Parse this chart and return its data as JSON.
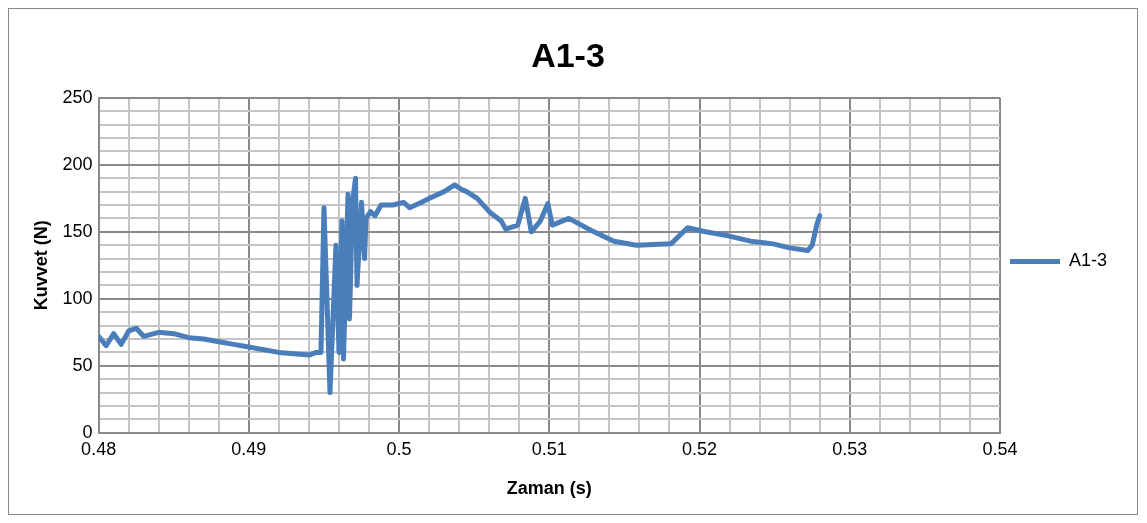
{
  "chart_data": {
    "type": "line",
    "title": "A1-3",
    "xlabel": "Zaman (s)",
    "ylabel": "Kuvvet (N)",
    "xlim": [
      0.48,
      0.54
    ],
    "xticks": [
      0.48,
      {
        "value": 0.482,
        "label": null
      },
      {
        "value": 0.484,
        "label": null
      },
      {
        "value": 0.486,
        "label": null
      },
      {
        "value": 0.488,
        "label": null
      },
      0.49,
      {
        "value": 0.492,
        "label": null
      },
      {
        "value": 0.494,
        "label": null
      },
      {
        "value": 0.496,
        "label": null
      },
      {
        "value": 0.498,
        "label": null
      },
      {
        "value": 0.5,
        "label": "0.5"
      },
      {
        "value": 0.502,
        "label": null
      },
      {
        "value": 0.504,
        "label": null
      },
      {
        "value": 0.506,
        "label": null
      },
      {
        "value": 0.508,
        "label": null
      },
      0.51,
      {
        "value": 0.512,
        "label": null
      },
      {
        "value": 0.514,
        "label": null
      },
      {
        "value": 0.516,
        "label": null
      },
      {
        "value": 0.518,
        "label": null
      },
      0.52,
      {
        "value": 0.522,
        "label": null
      },
      {
        "value": 0.524,
        "label": null
      },
      {
        "value": 0.526,
        "label": null
      },
      {
        "value": 0.528,
        "label": null
      },
      0.53,
      {
        "value": 0.532,
        "label": null
      },
      {
        "value": 0.534,
        "label": null
      },
      {
        "value": 0.536,
        "label": null
      },
      {
        "value": 0.538,
        "label": null
      },
      0.54
    ],
    "ylim": [
      0,
      250
    ],
    "yticks": [
      0,
      {
        "value": 10,
        "label": null
      },
      {
        "value": 20,
        "label": null
      },
      {
        "value": 30,
        "label": null
      },
      {
        "value": 40,
        "label": null
      },
      50,
      {
        "value": 60,
        "label": null
      },
      {
        "value": 70,
        "label": null
      },
      {
        "value": 80,
        "label": null
      },
      {
        "value": 90,
        "label": null
      },
      100,
      {
        "value": 110,
        "label": null
      },
      {
        "value": 120,
        "label": null
      },
      {
        "value": 130,
        "label": null
      },
      {
        "value": 140,
        "label": null
      },
      150,
      {
        "value": 160,
        "label": null
      },
      {
        "value": 170,
        "label": null
      },
      {
        "value": 180,
        "label": null
      },
      {
        "value": 190,
        "label": null
      },
      200,
      {
        "value": 210,
        "label": null
      },
      {
        "value": 220,
        "label": null
      },
      {
        "value": 230,
        "label": null
      },
      {
        "value": 240,
        "label": null
      },
      250
    ],
    "grid": true,
    "legend": "right",
    "marker": "none",
    "line_style": "solid",
    "series": [
      {
        "name": "A1-3",
        "color": "#4a7ebb",
        "x": [
          0.48,
          0.4805,
          0.481,
          0.4815,
          0.482,
          0.4825,
          0.483,
          0.484,
          0.485,
          0.486,
          0.487,
          0.488,
          0.489,
          0.49,
          0.491,
          0.492,
          0.493,
          0.494,
          0.4945,
          0.4948,
          0.495,
          0.4954,
          0.4958,
          0.496,
          0.4962,
          0.4963,
          0.4966,
          0.4967,
          0.4969,
          0.4971,
          0.4972,
          0.4975,
          0.4977,
          0.4978,
          0.4981,
          0.4984,
          0.4988,
          0.4996,
          0.5003,
          0.5007,
          0.5015,
          0.5022,
          0.503,
          0.5037,
          0.5041,
          0.5045,
          0.5052,
          0.506,
          0.5068,
          0.5071,
          0.5079,
          0.5084,
          0.5088,
          0.5094,
          0.5099,
          0.5102,
          0.5113,
          0.5128,
          0.5143,
          0.5158,
          0.5181,
          0.5192,
          0.5204,
          0.5219,
          0.5234,
          0.5249,
          0.526,
          0.5272,
          0.5275,
          0.5278,
          0.528
        ],
        "values": [
          72,
          65,
          74,
          66,
          76,
          78,
          72,
          75,
          74,
          71,
          70,
          68,
          66,
          64,
          62,
          60,
          59,
          58,
          60,
          60,
          168,
          30,
          140,
          60,
          158,
          55,
          178,
          85,
          172,
          190,
          110,
          172,
          130,
          160,
          165,
          162,
          170,
          170,
          172,
          168,
          172,
          176,
          180,
          185,
          182,
          180,
          175,
          165,
          158,
          152,
          155,
          175,
          150,
          158,
          171,
          155,
          160,
          151,
          143,
          140,
          141,
          153,
          150,
          147,
          143,
          141,
          138,
          136,
          140,
          155,
          162
        ]
      }
    ]
  }
}
